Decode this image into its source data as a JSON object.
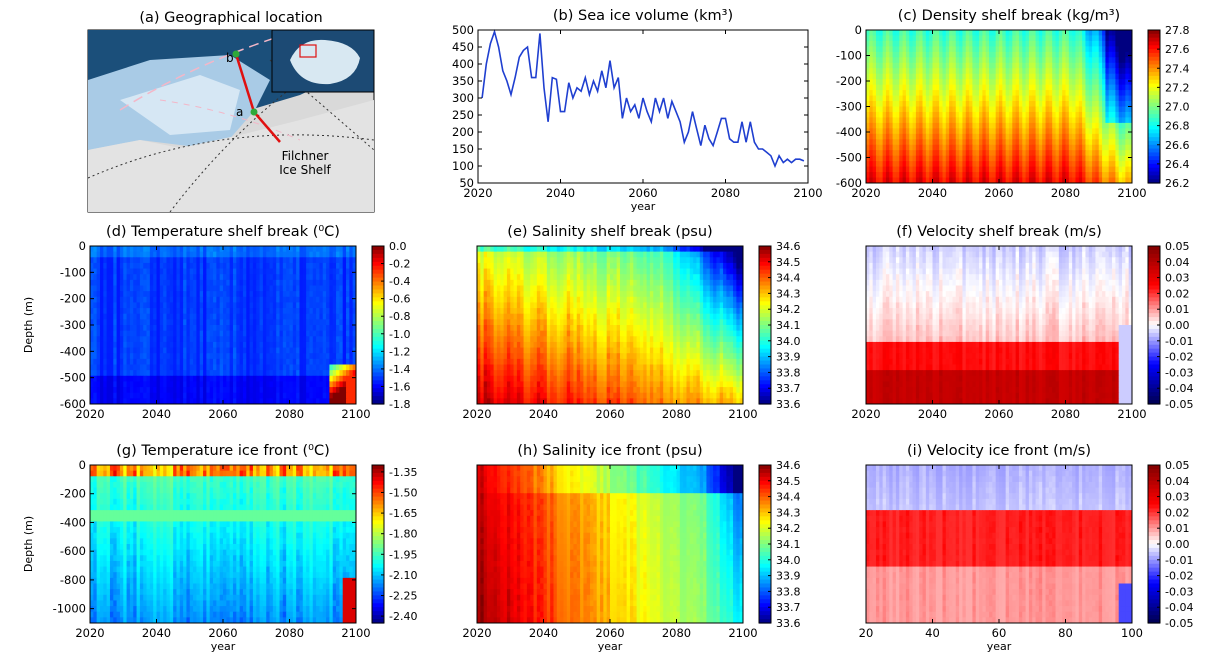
{
  "chart_data": [
    {
      "id": "a",
      "type": "map",
      "title": "(a) Geographical location",
      "point_labels": [
        "a",
        "b"
      ],
      "annotation": [
        "Filchner",
        "Ice Shelf"
      ]
    },
    {
      "id": "b",
      "type": "line",
      "title": "(b) Sea ice volume (km³)",
      "xlabel": "year",
      "ylabel": "",
      "xlim": [
        2020,
        2100
      ],
      "ylim": [
        50,
        500
      ],
      "xticks": [
        2020,
        2040,
        2060,
        2080,
        2100
      ],
      "yticks": [
        50,
        100,
        150,
        200,
        250,
        300,
        350,
        400,
        450,
        500
      ],
      "series_color": "#1f3fd0",
      "x": [
        2021,
        2022,
        2023,
        2024,
        2025,
        2026,
        2027,
        2028,
        2029,
        2030,
        2031,
        2032,
        2033,
        2034,
        2035,
        2036,
        2037,
        2038,
        2039,
        2040,
        2041,
        2042,
        2043,
        2044,
        2045,
        2046,
        2047,
        2048,
        2049,
        2050,
        2051,
        2052,
        2053,
        2054,
        2055,
        2056,
        2057,
        2058,
        2059,
        2060,
        2061,
        2062,
        2063,
        2064,
        2065,
        2066,
        2067,
        2068,
        2069,
        2070,
        2071,
        2072,
        2073,
        2074,
        2075,
        2076,
        2077,
        2078,
        2079,
        2080,
        2081,
        2082,
        2083,
        2084,
        2085,
        2086,
        2087,
        2088,
        2089,
        2090,
        2091,
        2092,
        2093,
        2094,
        2095,
        2096,
        2097,
        2098,
        2099
      ],
      "y": [
        300,
        400,
        460,
        495,
        450,
        380,
        350,
        310,
        360,
        420,
        440,
        450,
        360,
        360,
        490,
        330,
        230,
        360,
        355,
        260,
        260,
        345,
        300,
        330,
        320,
        360,
        310,
        350,
        320,
        380,
        330,
        410,
        330,
        360,
        240,
        300,
        260,
        280,
        240,
        300,
        260,
        230,
        300,
        260,
        300,
        240,
        290,
        260,
        230,
        170,
        200,
        260,
        210,
        160,
        220,
        180,
        160,
        200,
        240,
        240,
        180,
        170,
        170,
        230,
        170,
        230,
        170,
        150,
        150,
        140,
        130,
        100,
        130,
        110,
        120,
        110,
        120,
        120,
        115
      ]
    },
    {
      "id": "c",
      "type": "heatmap",
      "title": "(c) Density shelf break (kg/m³)",
      "xlim": [
        2020,
        2100
      ],
      "ylim": [
        -600,
        0
      ],
      "xticks": [
        2020,
        2040,
        2060,
        2080,
        2100
      ],
      "yticks": [
        0,
        -100,
        -200,
        -300,
        -400,
        -500,
        -600
      ],
      "colorbar": [
        27.8,
        27.6,
        27.4,
        27.2,
        27.0,
        26.8,
        26.6,
        26.4,
        26.2
      ],
      "clim": [
        26.2,
        27.8
      ]
    },
    {
      "id": "d",
      "type": "heatmap",
      "title": "(d) Temperature shelf break (⁰C)",
      "ylabel": "Depth (m)",
      "xlim": [
        2020,
        2100
      ],
      "ylim": [
        -600,
        0
      ],
      "xticks": [
        2020,
        2040,
        2060,
        2080,
        2100
      ],
      "yticks": [
        0,
        -100,
        -200,
        -300,
        -400,
        -500,
        -600
      ],
      "colorbar": [
        0.0,
        -0.2,
        -0.4,
        -0.6,
        -0.8,
        -1.0,
        -1.2,
        -1.4,
        -1.6,
        -1.8
      ],
      "clim": [
        -1.8,
        0.0
      ]
    },
    {
      "id": "e",
      "type": "heatmap",
      "title": "(e) Salinity shelf break (psu)",
      "xlim": [
        2020,
        2100
      ],
      "ylim": [
        -600,
        0
      ],
      "xticks": [
        2020,
        2040,
        2060,
        2080,
        2100
      ],
      "colorbar": [
        34.6,
        34.5,
        34.4,
        34.3,
        34.2,
        34.1,
        34.0,
        33.9,
        33.8,
        33.7,
        33.6
      ],
      "clim": [
        33.6,
        34.6
      ]
    },
    {
      "id": "f",
      "type": "heatmap",
      "title": "(f) Velocity shelf break (m/s)",
      "xlim": [
        2020,
        2100
      ],
      "ylim": [
        -600,
        0
      ],
      "xticks": [
        2020,
        2040,
        2060,
        2080,
        2100
      ],
      "colorbar": [
        0.05,
        0.04,
        0.03,
        0.02,
        0.01,
        0.0,
        -0.01,
        -0.02,
        -0.03,
        -0.04,
        -0.05
      ],
      "clim": [
        -0.05,
        0.05
      ]
    },
    {
      "id": "g",
      "type": "heatmap",
      "title": "(g) Temperature ice front (⁰C)",
      "xlabel": "year",
      "ylabel": "Depth (m)",
      "xlim": [
        2020,
        2100
      ],
      "ylim": [
        -1100,
        0
      ],
      "xticks": [
        2020,
        2040,
        2060,
        2080,
        2100
      ],
      "yticks": [
        0,
        -200,
        -400,
        -600,
        -800,
        -1000
      ],
      "colorbar": [
        -1.35,
        -1.5,
        -1.65,
        -1.8,
        -1.95,
        -2.1,
        -2.25,
        -2.4
      ],
      "clim": [
        -2.45,
        -1.3
      ]
    },
    {
      "id": "h",
      "type": "heatmap",
      "title": "(h) Salinity ice front (psu)",
      "xlabel": "year",
      "xlim": [
        2020,
        2100
      ],
      "ylim": [
        -1100,
        0
      ],
      "xticks": [
        2020,
        2040,
        2060,
        2080,
        2100
      ],
      "colorbar": [
        34.6,
        34.5,
        34.4,
        34.3,
        34.2,
        34.1,
        34.0,
        33.9,
        33.8,
        33.7,
        33.6
      ],
      "clim": [
        33.6,
        34.6
      ]
    },
    {
      "id": "i",
      "type": "heatmap",
      "title": "(i) Velocity ice front (m/s)",
      "xlabel": "year",
      "xlim": [
        20,
        100
      ],
      "ylim": [
        -1100,
        0
      ],
      "xticks": [
        20,
        40,
        60,
        80,
        100
      ],
      "colorbar": [
        0.05,
        0.04,
        0.03,
        0.02,
        0.01,
        0.0,
        -0.01,
        -0.02,
        -0.03,
        -0.04,
        -0.05
      ],
      "clim": [
        -0.05,
        0.05
      ]
    }
  ]
}
